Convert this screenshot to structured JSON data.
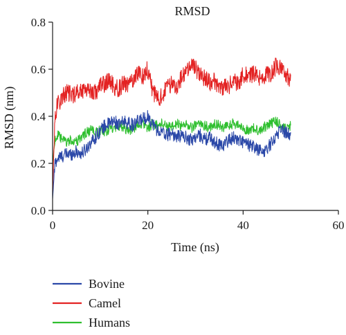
{
  "chart_data": {
    "type": "line",
    "title": "RMSD",
    "xlabel": "Time (ns)",
    "ylabel": "RMSD (nm)",
    "xlim": [
      0,
      60
    ],
    "ylim": [
      0.0,
      0.8
    ],
    "xticks": [
      "0",
      "20",
      "40",
      "60"
    ],
    "yticks": [
      "0.0",
      "0.2",
      "0.4",
      "0.6",
      "0.8"
    ],
    "grid": false,
    "legend_position": "bottom-left",
    "x": [
      0,
      0.5,
      1,
      2,
      3,
      4,
      5,
      6,
      7,
      8,
      9,
      10,
      11,
      12,
      13,
      14,
      15,
      16,
      17,
      18,
      19,
      20,
      21,
      22,
      23,
      24,
      25,
      26,
      27,
      28,
      29,
      30,
      31,
      32,
      33,
      34,
      35,
      36,
      37,
      38,
      39,
      40,
      41,
      42,
      43,
      44,
      45,
      46,
      47,
      48,
      49,
      50
    ],
    "series": [
      {
        "name": "Bovine",
        "color": "#2b48a8",
        "values": [
          0.05,
          0.2,
          0.22,
          0.23,
          0.24,
          0.24,
          0.25,
          0.24,
          0.26,
          0.29,
          0.31,
          0.34,
          0.36,
          0.37,
          0.38,
          0.36,
          0.38,
          0.37,
          0.36,
          0.38,
          0.39,
          0.4,
          0.37,
          0.34,
          0.33,
          0.32,
          0.33,
          0.31,
          0.32,
          0.31,
          0.3,
          0.31,
          0.32,
          0.3,
          0.31,
          0.29,
          0.28,
          0.28,
          0.3,
          0.31,
          0.3,
          0.29,
          0.28,
          0.27,
          0.26,
          0.25,
          0.26,
          0.29,
          0.32,
          0.35,
          0.33,
          0.32
        ]
      },
      {
        "name": "Camel",
        "color": "#e32222",
        "values": [
          0.08,
          0.4,
          0.45,
          0.48,
          0.5,
          0.49,
          0.5,
          0.51,
          0.52,
          0.51,
          0.5,
          0.53,
          0.54,
          0.55,
          0.52,
          0.52,
          0.54,
          0.53,
          0.56,
          0.59,
          0.57,
          0.6,
          0.51,
          0.47,
          0.49,
          0.52,
          0.54,
          0.53,
          0.56,
          0.58,
          0.63,
          0.6,
          0.58,
          0.56,
          0.54,
          0.55,
          0.53,
          0.52,
          0.53,
          0.55,
          0.54,
          0.58,
          0.57,
          0.58,
          0.57,
          0.56,
          0.58,
          0.58,
          0.62,
          0.6,
          0.57,
          0.56
        ]
      },
      {
        "name": "Humans",
        "color": "#2fbf2f",
        "values": [
          0.2,
          0.3,
          0.32,
          0.3,
          0.29,
          0.3,
          0.29,
          0.31,
          0.33,
          0.34,
          0.33,
          0.34,
          0.33,
          0.35,
          0.34,
          0.36,
          0.35,
          0.34,
          0.35,
          0.36,
          0.37,
          0.35,
          0.37,
          0.36,
          0.37,
          0.36,
          0.35,
          0.37,
          0.36,
          0.37,
          0.35,
          0.36,
          0.37,
          0.36,
          0.35,
          0.37,
          0.36,
          0.35,
          0.36,
          0.37,
          0.36,
          0.35,
          0.34,
          0.35,
          0.34,
          0.35,
          0.36,
          0.37,
          0.38,
          0.36,
          0.35,
          0.36
        ]
      }
    ]
  }
}
